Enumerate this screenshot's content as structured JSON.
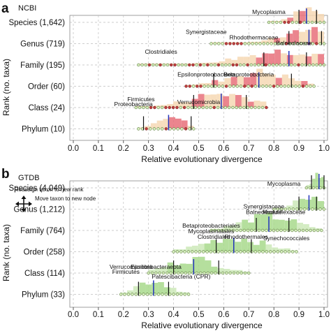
{
  "colors": {
    "ncbi_fill_light": "#f6d8b4",
    "ncbi_fill_dark": "#e8707a",
    "gtdb_fill_light": "#cde9b8",
    "gtdb_fill_dark": "#a8d98c",
    "median_line": "#2233bb",
    "marker_line": "#111111",
    "point_fill": "#d8f0c0",
    "point_stroke": "#5a7a3a",
    "point_red": "#c04040",
    "grid": "#bfbfbf"
  },
  "chart_data": [
    {
      "panel": "a",
      "title": "NCBI",
      "type": "scatter",
      "ylabel": "Rank (no. taxa)",
      "xlabel": "Relative evolutionary divergence",
      "xlim": [
        0.0,
        1.0
      ],
      "xticks": [
        "0.0",
        "0.1",
        "0.2",
        "0.3",
        "0.4",
        "0.5",
        "0.6",
        "0.7",
        "0.8",
        "0.9",
        "1.0"
      ],
      "ranks": [
        "Species (1,642)",
        "Genus (719)",
        "Family (195)",
        "Order (60)",
        "Class (24)",
        "Phylum (10)"
      ],
      "grid": true,
      "series": [
        {
          "rank": "Species (1,642)",
          "median": 0.93,
          "bounds": [
            0.9,
            0.97
          ],
          "range": [
            0.78,
            1.0
          ]
        },
        {
          "rank": "Genus (719)",
          "median": 0.94,
          "bounds": [
            0.86,
            0.99
          ],
          "range": [
            0.55,
            1.0
          ]
        },
        {
          "rank": "Family (195)",
          "median": 0.86,
          "bounds": [
            0.76,
            0.93
          ],
          "range": [
            0.26,
            1.0
          ]
        },
        {
          "rank": "Order (60)",
          "median": 0.74,
          "bounds": [
            0.56,
            0.87
          ],
          "range": [
            0.45,
            0.96
          ]
        },
        {
          "rank": "Class (24)",
          "median": 0.59,
          "bounds": [
            0.48,
            0.69
          ],
          "range": [
            0.25,
            0.77
          ]
        },
        {
          "rank": "Phylum (10)",
          "median": 0.38,
          "bounds": [
            0.28,
            0.47
          ],
          "range": [
            0.26,
            0.48
          ]
        }
      ],
      "annotations": [
        {
          "text": "Mycoplasma",
          "x": 0.78,
          "rank": "Species (1,642)"
        },
        {
          "text": "Synergistaceae",
          "x": 0.53,
          "rank": "Genus (719)"
        },
        {
          "text": "Rhodothermaceae",
          "x": 0.72,
          "rank": "Genus (719)"
        },
        {
          "text": "Balneolaceae",
          "x": 0.88,
          "rank": "Genus (719)"
        },
        {
          "text": "Clostridiales",
          "x": 0.35,
          "rank": "Family (195)"
        },
        {
          "text": "Epsilonproteobacteria",
          "x": 0.53,
          "rank": "Order (60)"
        },
        {
          "text": "Betaproteobacteria",
          "x": 0.7,
          "rank": "Order (60)"
        },
        {
          "text": "Firmicutes",
          "x": 0.27,
          "rank": "Class (24)"
        },
        {
          "text": "Proteobacteria",
          "x": 0.24,
          "rank": "Class (24)"
        },
        {
          "text": "Verrucomicrobia",
          "x": 0.5,
          "rank": "Class (24)"
        }
      ]
    },
    {
      "panel": "b",
      "title": "GTDB",
      "type": "scatter",
      "ylabel": "Rank (no. taxa)",
      "xlabel": "Relative evolutionary divergence",
      "xlim": [
        0.0,
        1.0
      ],
      "xticks": [
        "0.0",
        "0.1",
        "0.2",
        "0.3",
        "0.4",
        "0.5",
        "0.6",
        "0.7",
        "0.8",
        "0.9",
        "1.0"
      ],
      "ranks": [
        "Species (4,049)",
        "Genus (1,212)",
        "Family (764)",
        "Order (258)",
        "Class (114)",
        "Phylum (33)"
      ],
      "grid": true,
      "series": [
        {
          "rank": "Species (4,049)",
          "median": 0.98,
          "bounds": [
            0.95,
            1.0
          ],
          "range": [
            0.93,
            1.0
          ]
        },
        {
          "rank": "Genus (1,212)",
          "median": 0.94,
          "bounds": [
            0.9,
            0.97
          ],
          "range": [
            0.8,
            1.0
          ]
        },
        {
          "rank": "Family (764)",
          "median": 0.78,
          "bounds": [
            0.73,
            0.86
          ],
          "range": [
            0.55,
            0.99
          ]
        },
        {
          "rank": "Order (258)",
          "median": 0.64,
          "bounds": [
            0.57,
            0.71
          ],
          "range": [
            0.4,
            0.89
          ]
        },
        {
          "rank": "Class (114)",
          "median": 0.48,
          "bounds": [
            0.4,
            0.58
          ],
          "range": [
            0.3,
            0.7
          ]
        },
        {
          "rank": "Phylum (33)",
          "median": 0.32,
          "bounds": [
            0.26,
            0.38
          ],
          "range": [
            0.19,
            0.46
          ]
        }
      ],
      "annotations": [
        {
          "text": "Mycoplasma",
          "x": 0.84,
          "rank": "Species (4,049)"
        },
        {
          "text": "Synergistaceae",
          "x": 0.76,
          "rank": "Genus (1,212)"
        },
        {
          "text": "Balneolaceae",
          "x": 0.76,
          "rank": "Genus (1,212)"
        },
        {
          "text": "Moduliflexaceae",
          "x": 0.84,
          "rank": "Genus (1,212)"
        },
        {
          "text": "Betaproteobacteriales",
          "x": 0.55,
          "rank": "Family (764)"
        },
        {
          "text": "Mycoplasmatales",
          "x": 0.55,
          "rank": "Family (764)"
        },
        {
          "text": "Clostridiales",
          "x": 0.56,
          "rank": "Family (764)"
        },
        {
          "text": "Rhodothermales",
          "x": 0.69,
          "rank": "Family (764)"
        },
        {
          "text": "Synechococcales",
          "x": 0.85,
          "rank": "Family (764)"
        },
        {
          "text": "Verrucomicrobia",
          "x": 0.23,
          "rank": "Class (114)"
        },
        {
          "text": "Epsilonbacteraeota",
          "x": 0.33,
          "rank": "Class (114)"
        },
        {
          "text": "Firmicutes",
          "x": 0.21,
          "rank": "Class (114)"
        },
        {
          "text": "Patescibacteria (CPR)",
          "x": 0.43,
          "rank": "Class (114)"
        }
      ],
      "legend": {
        "placement": "top-left",
        "reassign_label": "Reassign taxon to new rank",
        "move_label": "Move taxon to new node"
      }
    }
  ]
}
